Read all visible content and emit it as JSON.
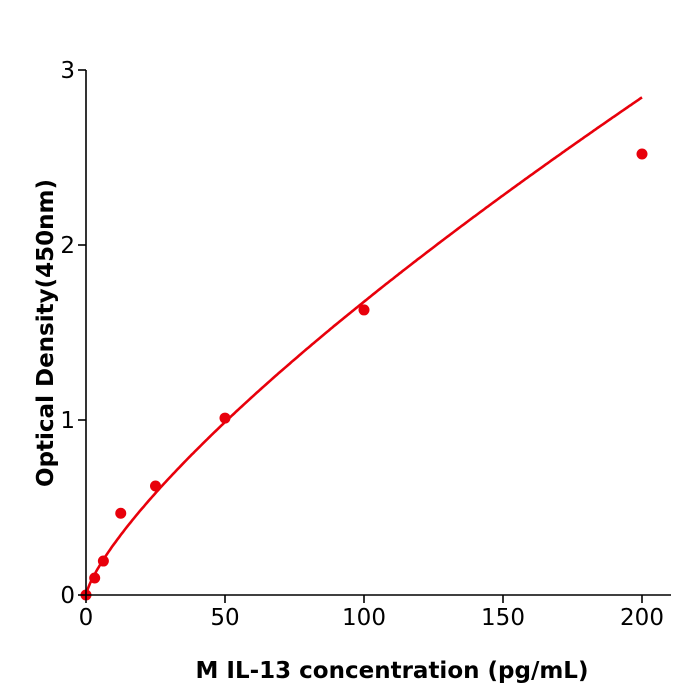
{
  "chart_data": {
    "type": "scatter",
    "title": "",
    "xlabel": "M  IL-13 concentration (pg/mL)",
    "ylabel": "Optical Density(450nm)",
    "xlim": [
      0,
      210
    ],
    "ylim": [
      0,
      3
    ],
    "xticks": [
      "0",
      "50",
      "100",
      "150",
      "200"
    ],
    "yticks": [
      "0",
      "1",
      "2",
      "3"
    ],
    "grid": false,
    "legend": "none",
    "color": "#e8000b",
    "fit": "smooth curve through points",
    "series": [
      {
        "x": [
          0,
          3.125,
          6.25,
          12.5,
          25,
          50,
          100,
          200
        ],
        "y": [
          0.0,
          0.097,
          0.194,
          0.467,
          0.623,
          1.011,
          1.629,
          2.52
        ]
      }
    ]
  }
}
